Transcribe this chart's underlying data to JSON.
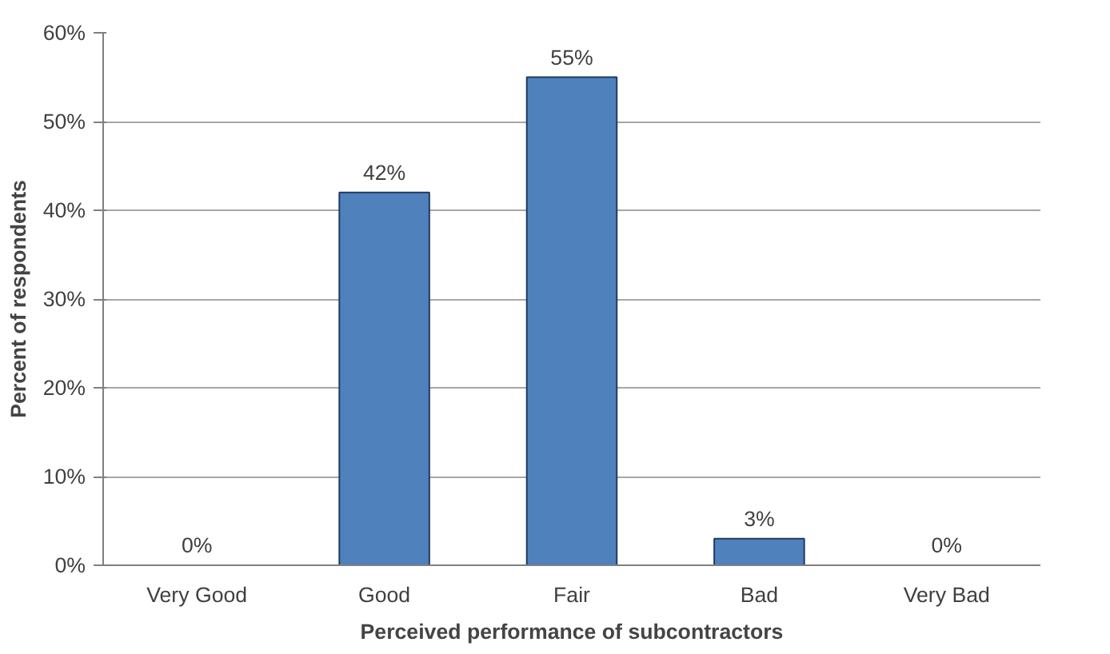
{
  "chart_data": {
    "type": "bar",
    "xlabel": "Perceived performance of subcontractors",
    "ylabel": "Percent of respondents",
    "categories": [
      "Very Good",
      "Good",
      "Fair",
      "Bad",
      "Very Bad"
    ],
    "values": [
      0,
      42,
      55,
      3,
      0
    ],
    "value_labels": [
      "0%",
      "42%",
      "55%",
      "3%",
      "0%"
    ],
    "color": "#4f81bd",
    "ylim": [
      0,
      60
    ],
    "yticks": [
      {
        "value": 0,
        "label": "0%"
      },
      {
        "value": 10,
        "label": "10%"
      },
      {
        "value": 20,
        "label": "20%"
      },
      {
        "value": 30,
        "label": "30%"
      },
      {
        "value": 40,
        "label": "40%"
      },
      {
        "value": 50,
        "label": "50%"
      },
      {
        "value": 60,
        "label": "60%"
      }
    ],
    "grid": "y"
  }
}
